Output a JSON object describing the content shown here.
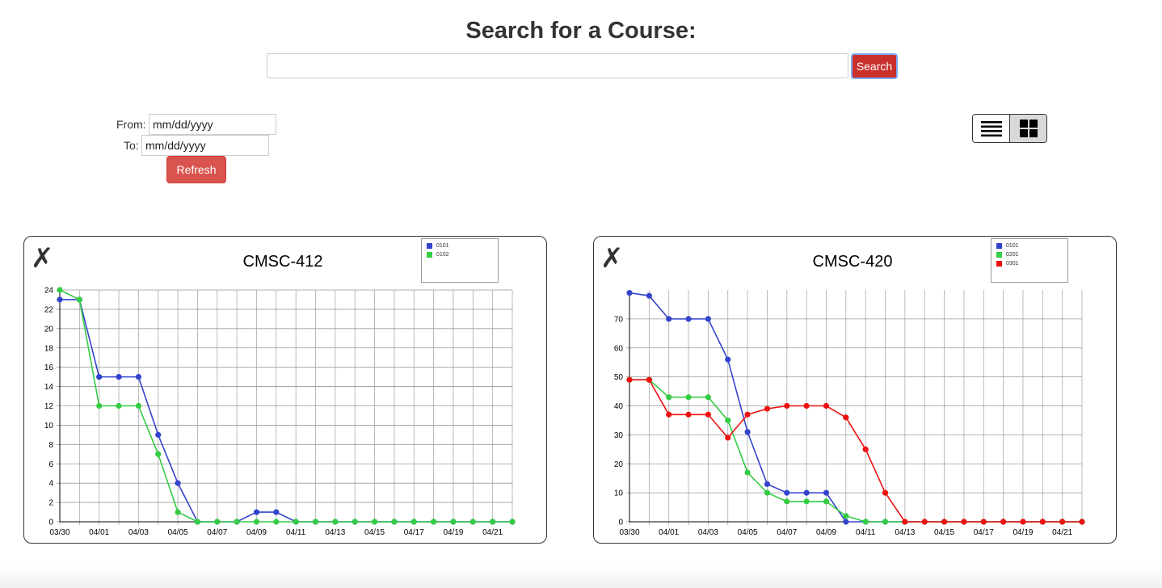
{
  "header": {
    "title": "Search for a Course:"
  },
  "search": {
    "value": "",
    "placeholder": "",
    "button_label": "Search",
    "button_color": "#c9302c"
  },
  "filters": {
    "from_label": "From:",
    "from_value": "mm/dd/yyyy",
    "to_label": "To:",
    "to_value": "mm/dd/yyyy",
    "refresh_label": "Refresh",
    "refresh_color": "#d9534f"
  },
  "view_toggle": {
    "options": [
      "list-view-icon",
      "grid-view-icon"
    ],
    "active": "grid-view-icon"
  },
  "colors": {
    "blue": "#3344cc",
    "green": "#33cc44",
    "red": "#ee1111"
  },
  "chart_data": [
    {
      "type": "line",
      "title": "CMSC-412",
      "x": [
        "03/30",
        "03/31",
        "04/01",
        "04/02",
        "04/03",
        "04/04",
        "04/05",
        "04/06",
        "04/07",
        "04/08",
        "04/09",
        "04/10",
        "04/11",
        "04/12",
        "04/13",
        "04/14",
        "04/15",
        "04/16",
        "04/17",
        "04/18",
        "04/19",
        "04/20",
        "04/21",
        "04/22"
      ],
      "x_tick_labels": [
        "03/30",
        "04/01",
        "04/03",
        "04/05",
        "04/07",
        "04/09",
        "04/11",
        "04/13",
        "04/15",
        "04/17",
        "04/19",
        "04/21"
      ],
      "y_ticks": [
        0,
        2,
        4,
        6,
        8,
        10,
        12,
        14,
        16,
        18,
        20,
        22,
        24
      ],
      "ylim": [
        0,
        24
      ],
      "grid": true,
      "legend": "top-right",
      "series": [
        {
          "name": "0101",
          "color": "#3344cc",
          "values": [
            23,
            23,
            15,
            15,
            15,
            9,
            4,
            0,
            0,
            0,
            1,
            1,
            0,
            0,
            0,
            0,
            0,
            0,
            0,
            0,
            0,
            0,
            0,
            0
          ]
        },
        {
          "name": "0102",
          "color": "#33cc44",
          "values": [
            24,
            23,
            12,
            12,
            12,
            7,
            1,
            0,
            0,
            0,
            0,
            0,
            0,
            0,
            0,
            0,
            0,
            0,
            0,
            0,
            0,
            0,
            0,
            0
          ]
        }
      ]
    },
    {
      "type": "line",
      "title": "CMSC-420",
      "x": [
        "03/30",
        "03/31",
        "04/01",
        "04/02",
        "04/03",
        "04/04",
        "04/05",
        "04/06",
        "04/07",
        "04/08",
        "04/09",
        "04/10",
        "04/11",
        "04/12",
        "04/13",
        "04/14",
        "04/15",
        "04/16",
        "04/17",
        "04/18",
        "04/19",
        "04/20",
        "04/21",
        "04/22"
      ],
      "x_tick_labels": [
        "03/30",
        "04/01",
        "04/03",
        "04/05",
        "04/07",
        "04/09",
        "04/11",
        "04/13",
        "04/15",
        "04/17",
        "04/19",
        "04/21"
      ],
      "y_ticks": [
        0,
        10,
        20,
        30,
        40,
        50,
        60,
        70
      ],
      "ylim": [
        0,
        80
      ],
      "grid": true,
      "legend": "top-right",
      "series": [
        {
          "name": "0101",
          "color": "#3344cc",
          "values": [
            79,
            78,
            70,
            70,
            70,
            56,
            31,
            13,
            10,
            10,
            10,
            0,
            0,
            0,
            0,
            0,
            0,
            0,
            0,
            0,
            0,
            0,
            0,
            0
          ]
        },
        {
          "name": "0201",
          "color": "#33cc44",
          "values": [
            49,
            49,
            43,
            43,
            43,
            35,
            17,
            10,
            7,
            7,
            7,
            2,
            0,
            0,
            0,
            0,
            0,
            0,
            0,
            0,
            0,
            0,
            0,
            0
          ]
        },
        {
          "name": "0301",
          "color": "#ee1111",
          "values": [
            49,
            49,
            37,
            37,
            37,
            29,
            37,
            39,
            40,
            40,
            40,
            36,
            25,
            10,
            0,
            0,
            0,
            0,
            0,
            0,
            0,
            0,
            0,
            0
          ]
        }
      ]
    }
  ]
}
